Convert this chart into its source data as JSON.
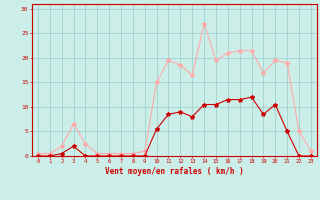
{
  "x": [
    0,
    1,
    2,
    3,
    4,
    5,
    6,
    7,
    8,
    9,
    10,
    11,
    12,
    13,
    14,
    15,
    16,
    17,
    18,
    19,
    20,
    21,
    22,
    23
  ],
  "wind_avg": [
    0,
    0,
    0.5,
    2,
    0,
    0,
    0,
    0,
    0,
    0,
    5.5,
    8.5,
    9,
    8,
    10.5,
    10.5,
    11.5,
    11.5,
    12,
    8.5,
    10.5,
    5,
    0,
    0
  ],
  "wind_gust": [
    0.5,
    0.5,
    2,
    6.5,
    2.5,
    0.5,
    0.5,
    0.5,
    0.5,
    1,
    15,
    19.5,
    18.5,
    16.5,
    27,
    19.5,
    21,
    21.5,
    21.5,
    17,
    19.5,
    19,
    5,
    1
  ],
  "color_avg": "#cc0000",
  "color_gust": "#ffaaaa",
  "bg_color": "#cceee8",
  "grid_color": "#99cccc",
  "xlabel": "Vent moyen/en rafales ( km/h )",
  "xlabel_color": "#cc0000",
  "ylabel_values": [
    0,
    5,
    10,
    15,
    20,
    25,
    30
  ],
  "ylim": [
    0,
    31
  ],
  "xlim": [
    -0.5,
    23.5
  ],
  "tick_color": "#cc0000",
  "marker": "*",
  "markersize": 3,
  "linewidth": 0.8
}
